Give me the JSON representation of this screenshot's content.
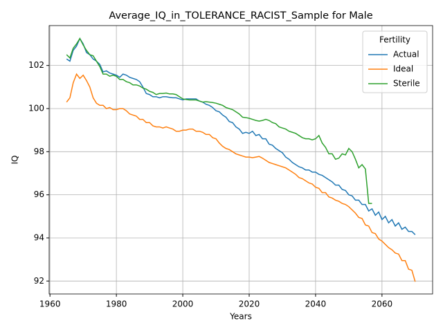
{
  "chart_data": {
    "type": "line",
    "title": "Average_IQ_in_TOLERANCE_RACIST_Sample for Male",
    "x_label": "Years",
    "y_label": "IQ",
    "legend_title": "Fertility",
    "legend": "upper right",
    "grid": true,
    "x": [
      1965,
      1966,
      1967,
      1968,
      1969,
      1970,
      1971,
      1972,
      1973,
      1974,
      1975,
      1976,
      1977,
      1978,
      1979,
      1980,
      1981,
      1982,
      1983,
      1984,
      1985,
      1986,
      1987,
      1988,
      1989,
      1990,
      1991,
      1992,
      1993,
      1994,
      1995,
      1996,
      1997,
      1998,
      1999,
      2000,
      2001,
      2002,
      2003,
      2004,
      2005,
      2006,
      2007,
      2008,
      2009,
      2010,
      2011,
      2012,
      2013,
      2014,
      2015,
      2016,
      2017,
      2018,
      2019,
      2020,
      2021,
      2022,
      2023,
      2024,
      2025,
      2026,
      2027,
      2028,
      2029,
      2030,
      2031,
      2032,
      2033,
      2034,
      2035,
      2036,
      2037,
      2038,
      2039,
      2040,
      2041,
      2042,
      2043,
      2044,
      2045,
      2046,
      2047,
      2048,
      2049,
      2050,
      2051,
      2052,
      2053,
      2054,
      2055,
      2056,
      2057,
      2058,
      2059,
      2060,
      2061,
      2062,
      2063,
      2064,
      2065,
      2066,
      2067,
      2068,
      2069,
      2070
    ],
    "series": [
      {
        "name": "Actual",
        "color": "#1f77b4",
        "values": [
          102.3,
          102.2,
          102.7,
          102.9,
          103.25,
          103.0,
          102.6,
          102.5,
          102.3,
          102.2,
          102.05,
          101.7,
          101.75,
          101.65,
          101.6,
          101.55,
          101.45,
          101.6,
          101.55,
          101.45,
          101.4,
          101.35,
          101.25,
          101.0,
          100.7,
          100.65,
          100.55,
          100.55,
          100.5,
          100.55,
          100.55,
          100.52,
          100.5,
          100.5,
          100.45,
          100.4,
          100.45,
          100.45,
          100.45,
          100.45,
          100.35,
          100.3,
          100.2,
          100.15,
          100.05,
          99.9,
          99.85,
          99.7,
          99.6,
          99.4,
          99.35,
          99.15,
          99.05,
          98.85,
          98.9,
          98.85,
          98.95,
          98.75,
          98.8,
          98.6,
          98.6,
          98.35,
          98.3,
          98.15,
          98.05,
          97.95,
          97.75,
          97.65,
          97.5,
          97.4,
          97.3,
          97.25,
          97.15,
          97.15,
          97.05,
          97.05,
          96.95,
          96.9,
          96.8,
          96.7,
          96.6,
          96.45,
          96.45,
          96.25,
          96.2,
          96.0,
          95.95,
          95.75,
          95.75,
          95.55,
          95.55,
          95.25,
          95.35,
          95.05,
          95.2,
          94.85,
          95.0,
          94.7,
          94.85,
          94.55,
          94.7,
          94.4,
          94.5,
          94.3,
          94.3,
          94.15
        ]
      },
      {
        "name": "Ideal",
        "color": "#ff7f0e",
        "values": [
          100.3,
          100.5,
          101.2,
          101.6,
          101.4,
          101.55,
          101.3,
          101.0,
          100.5,
          100.25,
          100.15,
          100.15,
          100.0,
          100.05,
          99.95,
          99.95,
          100.0,
          100.0,
          99.9,
          99.75,
          99.7,
          99.65,
          99.5,
          99.5,
          99.35,
          99.35,
          99.2,
          99.15,
          99.15,
          99.1,
          99.15,
          99.1,
          99.05,
          98.95,
          98.95,
          99.0,
          99.0,
          99.05,
          99.05,
          98.95,
          98.95,
          98.9,
          98.8,
          98.8,
          98.65,
          98.6,
          98.4,
          98.25,
          98.15,
          98.1,
          98.0,
          97.9,
          97.85,
          97.8,
          97.75,
          97.75,
          97.72,
          97.75,
          97.78,
          97.7,
          97.6,
          97.5,
          97.45,
          97.4,
          97.35,
          97.3,
          97.25,
          97.15,
          97.05,
          96.95,
          96.8,
          96.75,
          96.65,
          96.55,
          96.5,
          96.35,
          96.3,
          96.1,
          96.1,
          95.9,
          95.85,
          95.75,
          95.7,
          95.6,
          95.55,
          95.45,
          95.3,
          95.15,
          94.95,
          94.9,
          94.6,
          94.55,
          94.25,
          94.2,
          93.95,
          93.85,
          93.7,
          93.55,
          93.45,
          93.3,
          93.25,
          92.95,
          92.95,
          92.55,
          92.5,
          91.97
        ]
      },
      {
        "name": "Sterile",
        "color": "#2ca02c",
        "values": [
          102.5,
          102.35,
          102.8,
          103.0,
          103.25,
          102.95,
          102.7,
          102.5,
          102.45,
          102.2,
          101.95,
          101.6,
          101.6,
          101.5,
          101.55,
          101.5,
          101.35,
          101.35,
          101.25,
          101.2,
          101.1,
          101.1,
          101.05,
          100.95,
          100.9,
          100.8,
          100.75,
          100.65,
          100.7,
          100.7,
          100.72,
          100.68,
          100.68,
          100.65,
          100.55,
          100.45,
          100.42,
          100.4,
          100.4,
          100.4,
          100.35,
          100.3,
          100.32,
          100.3,
          100.28,
          100.25,
          100.2,
          100.15,
          100.05,
          100.0,
          99.95,
          99.85,
          99.75,
          99.6,
          99.58,
          99.55,
          99.5,
          99.45,
          99.42,
          99.45,
          99.5,
          99.45,
          99.35,
          99.3,
          99.15,
          99.1,
          99.05,
          98.95,
          98.9,
          98.85,
          98.75,
          98.65,
          98.6,
          98.6,
          98.55,
          98.6,
          98.75,
          98.4,
          98.2,
          97.9,
          97.9,
          97.65,
          97.7,
          97.9,
          97.85,
          98.15,
          98.0,
          97.65,
          97.25,
          97.4,
          97.2,
          95.6,
          95.6,
          null,
          null,
          null,
          null,
          null,
          null,
          null,
          null,
          null,
          null,
          null,
          null,
          null
        ]
      }
    ],
    "xlim": [
      1959.75,
      2075.25
    ],
    "ylim": [
      91.4,
      103.85
    ],
    "xticks": [
      1960,
      1980,
      2000,
      2020,
      2040,
      2060
    ],
    "yticks": [
      92,
      94,
      96,
      98,
      100,
      102
    ]
  }
}
